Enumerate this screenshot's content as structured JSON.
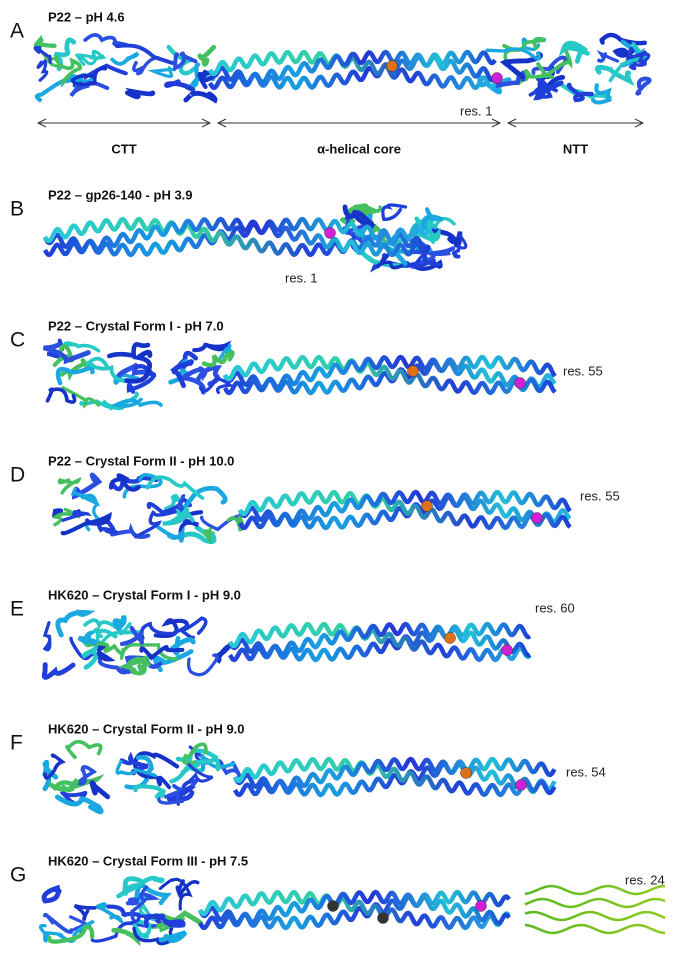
{
  "panels": [
    {
      "letter": "A",
      "title": "P22 – pH 4.6",
      "labels": [
        "res. 1"
      ],
      "domains": [
        "CTT",
        "α-helical core",
        "NTT"
      ]
    },
    {
      "letter": "B",
      "title": "P22 – gp26-140 - pH 3.9",
      "labels": [
        "res. 1"
      ]
    },
    {
      "letter": "C",
      "title": "P22 – Crystal Form I - pH 7.0",
      "labels": [
        "res. 55"
      ]
    },
    {
      "letter": "D",
      "title": "P22 – Crystal Form II - pH 10.0",
      "labels": [
        "res. 55"
      ]
    },
    {
      "letter": "E",
      "title": "HK620 – Crystal Form I - pH 9.0",
      "labels": [
        "res. 60"
      ]
    },
    {
      "letter": "F",
      "title": "HK620 – Crystal Form II - pH 9.0",
      "labels": [
        "res. 54"
      ]
    },
    {
      "letter": "G",
      "title": "HK620 – Crystal Form III - pH 7.5",
      "labels": [
        "res. 24"
      ]
    }
  ]
}
